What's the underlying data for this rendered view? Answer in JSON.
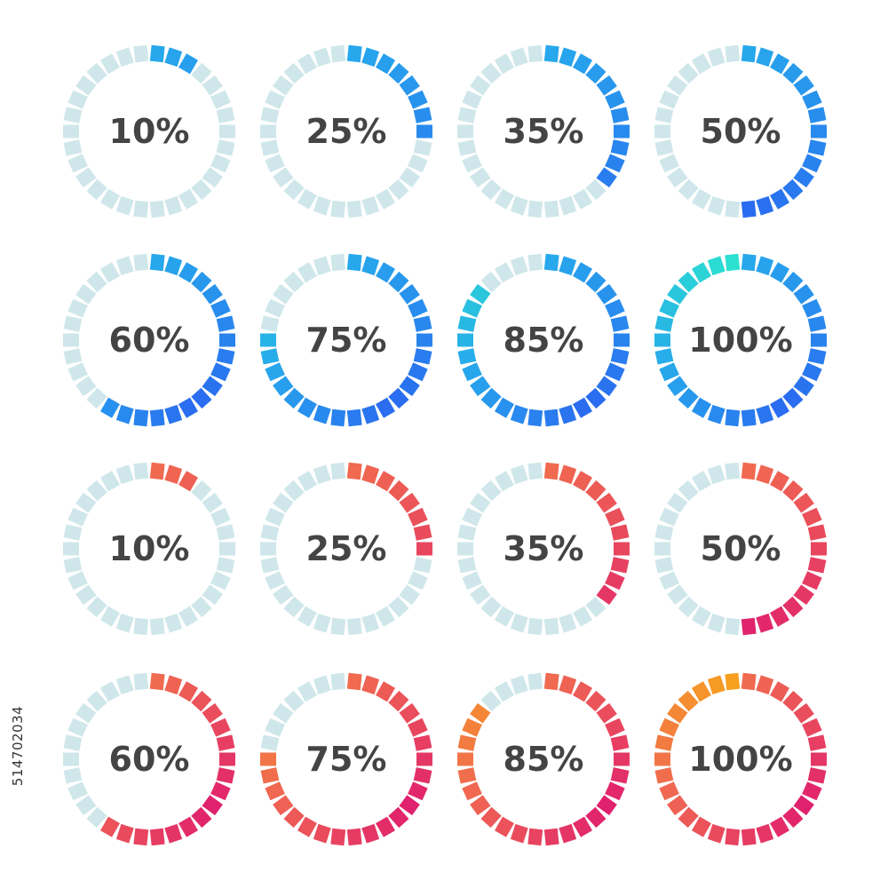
{
  "colors": {
    "track": "#cfe7ea",
    "text": "#444444",
    "blue_start": "#2a6af0",
    "blue_end": "#2be0d0",
    "pink_start": "#f06a50",
    "pink_mid": "#e0206e",
    "orange_end": "#f7a020"
  },
  "segments_per_ring": 30,
  "rows": [
    {
      "palette": "blue-partial",
      "gauges": [
        {
          "label": "10%",
          "value": 0.1
        },
        {
          "label": "25%",
          "value": 0.25
        },
        {
          "label": "35%",
          "value": 0.35
        },
        {
          "label": "50%",
          "value": 0.5
        }
      ]
    },
    {
      "palette": "blue-full",
      "gauges": [
        {
          "label": "60%",
          "value": 0.6
        },
        {
          "label": "75%",
          "value": 0.75
        },
        {
          "label": "85%",
          "value": 0.85
        },
        {
          "label": "100%",
          "value": 1.0
        }
      ]
    },
    {
      "palette": "pink-partial",
      "gauges": [
        {
          "label": "10%",
          "value": 0.1
        },
        {
          "label": "25%",
          "value": 0.25
        },
        {
          "label": "35%",
          "value": 0.35
        },
        {
          "label": "50%",
          "value": 0.5
        }
      ]
    },
    {
      "palette": "pink-full",
      "gauges": [
        {
          "label": "60%",
          "value": 0.6
        },
        {
          "label": "75%",
          "value": 0.75
        },
        {
          "label": "85%",
          "value": 0.85
        },
        {
          "label": "100%",
          "value": 1.0
        }
      ]
    }
  ],
  "stock_id": "514702034"
}
